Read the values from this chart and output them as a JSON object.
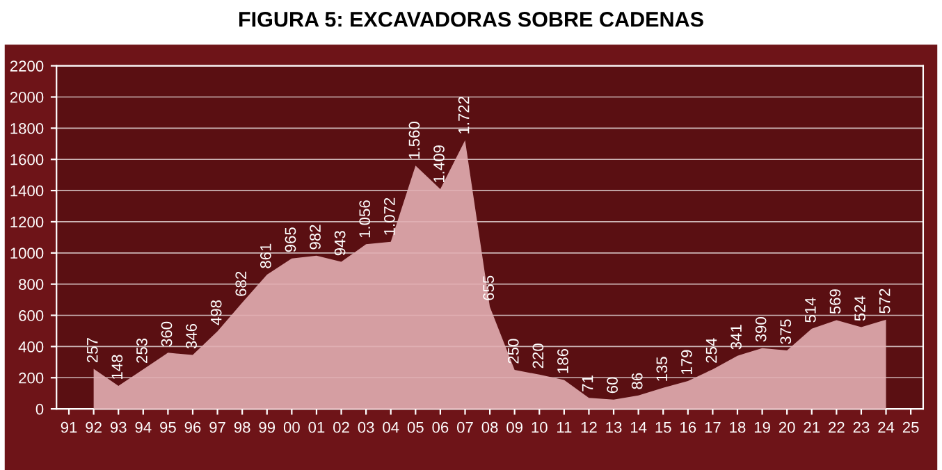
{
  "chart_data": {
    "type": "area",
    "title": "FIGURA 5: EXCAVADORAS SOBRE CADENAS",
    "categories": [
      "91",
      "92",
      "93",
      "94",
      "95",
      "96",
      "97",
      "98",
      "99",
      "00",
      "01",
      "02",
      "03",
      "04",
      "05",
      "06",
      "07",
      "08",
      "09",
      "10",
      "11",
      "12",
      "13",
      "14",
      "15",
      "16",
      "17",
      "18",
      "19",
      "20",
      "21",
      "22",
      "23",
      "24",
      "25"
    ],
    "values": [
      null,
      257,
      148,
      253,
      360,
      346,
      498,
      682,
      861,
      965,
      982,
      943,
      1056,
      1072,
      1560,
      1409,
      1722,
      655,
      250,
      220,
      186,
      71,
      60,
      86,
      135,
      179,
      254,
      341,
      390,
      375,
      514,
      569,
      524,
      572,
      null
    ],
    "value_labels": [
      null,
      "257",
      "148",
      "253",
      "360",
      "346",
      "498",
      "682",
      "861",
      "965",
      "982",
      "943",
      "1.056",
      "1.072",
      "1.560",
      "1.409",
      "1.722",
      "655",
      "250",
      "220",
      "186",
      "71",
      "60",
      "86",
      "135",
      "179",
      "254",
      "341",
      "390",
      "375",
      "514",
      "569",
      "524",
      "572",
      null
    ],
    "color": "#e2aeb2",
    "ylim": [
      0,
      2200
    ],
    "yticks": [
      0,
      200,
      400,
      600,
      800,
      1000,
      1200,
      1400,
      1600,
      1800,
      2000,
      2200
    ],
    "grid": "y"
  }
}
